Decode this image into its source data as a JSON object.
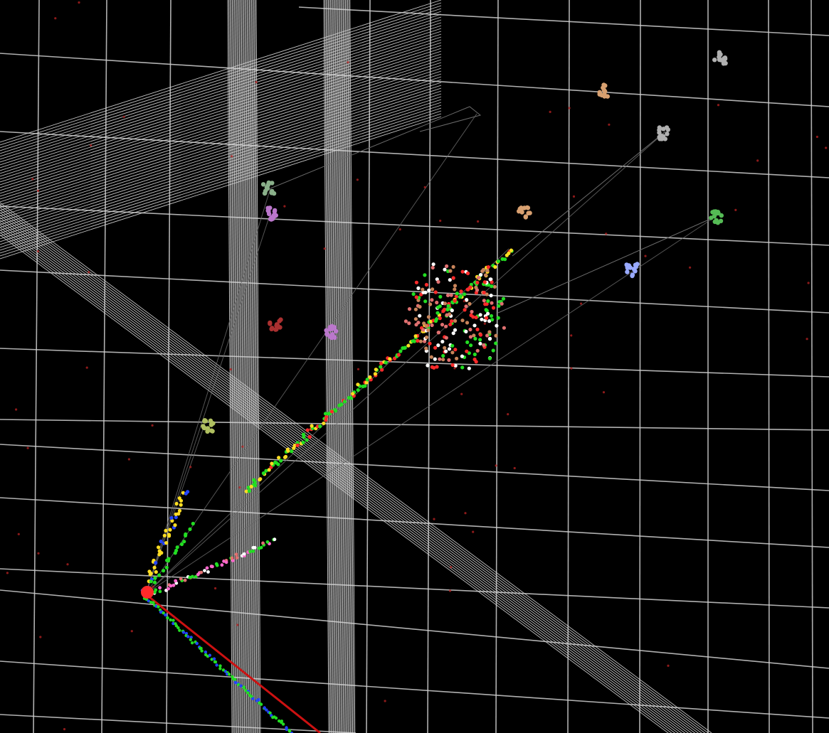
{
  "scene": {
    "background": "#000000",
    "grid_color": "#cfcfcf",
    "dense_band_color": "#d9d9d9",
    "track_colors": [
      "#22dd22",
      "#ff2a2a",
      "#ffdd22",
      "#e07070",
      "#c8845a",
      "#ffffff",
      "#2244ff",
      "#ff66cc"
    ],
    "connector_color": "#6a6a6a",
    "primary_track_color": "#cc1111",
    "cluster_colors": [
      "#b0b0b0",
      "#d8a070",
      "#8ab08a",
      "#bb77cc",
      "#99aaff",
      "#b0c060",
      "#aa3030",
      "#55bb55"
    ]
  }
}
